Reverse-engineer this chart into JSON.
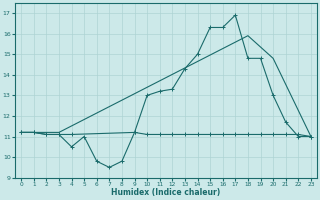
{
  "xlabel": "Humidex (Indice chaleur)",
  "xlim": [
    -0.5,
    23.5
  ],
  "ylim": [
    9,
    17.5
  ],
  "yticks": [
    9,
    10,
    11,
    12,
    13,
    14,
    15,
    16,
    17
  ],
  "xticks": [
    0,
    1,
    2,
    3,
    4,
    5,
    6,
    7,
    8,
    9,
    10,
    11,
    12,
    13,
    14,
    15,
    16,
    17,
    18,
    19,
    20,
    21,
    22,
    23
  ],
  "bg_color": "#cce9e9",
  "line_color": "#1a6b6b",
  "grid_color": "#aed4d4",
  "line1_x": [
    0,
    1,
    2,
    3,
    4,
    5,
    6,
    7,
    8,
    9,
    10,
    11,
    12,
    13,
    14,
    15,
    16,
    17,
    18,
    19,
    20,
    21,
    22,
    23
  ],
  "line1_y": [
    11.2,
    11.2,
    11.1,
    11.1,
    10.5,
    11.0,
    9.8,
    9.5,
    9.8,
    11.2,
    11.1,
    11.1,
    11.1,
    11.1,
    11.1,
    11.1,
    11.1,
    11.1,
    11.1,
    11.1,
    11.1,
    11.1,
    11.1,
    11.0
  ],
  "line2_x": [
    0,
    1,
    2,
    3,
    4,
    9,
    10,
    11,
    12,
    13,
    14,
    15,
    16,
    17,
    18,
    19,
    20,
    21,
    22,
    23
  ],
  "line2_y": [
    11.2,
    11.2,
    11.1,
    11.1,
    11.1,
    11.2,
    13.0,
    13.2,
    13.3,
    14.3,
    15.0,
    16.3,
    16.3,
    16.9,
    14.8,
    14.8,
    13.0,
    11.7,
    11.0,
    11.0
  ],
  "line3_x": [
    0,
    3,
    18,
    20,
    23
  ],
  "line3_y": [
    11.2,
    11.2,
    15.9,
    14.8,
    11.0
  ]
}
